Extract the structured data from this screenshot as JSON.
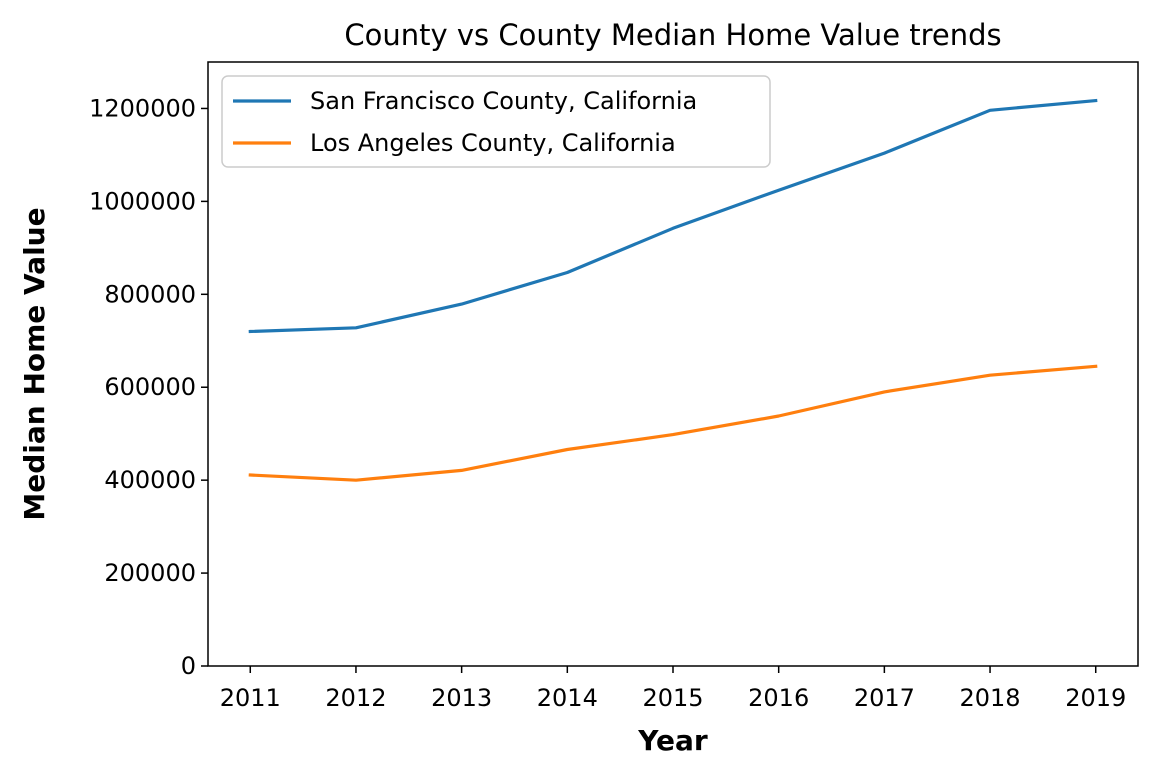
{
  "chart_data": {
    "type": "line",
    "title": "County vs County Median Home Value trends",
    "xlabel": "Year",
    "ylabel": "Median Home Value",
    "x": [
      2011,
      2012,
      2013,
      2014,
      2015,
      2016,
      2017,
      2018,
      2019
    ],
    "x_tick_labels": [
      "2011",
      "2012",
      "2013",
      "2014",
      "2015",
      "2016",
      "2017",
      "2018",
      "2019"
    ],
    "ylim": [
      0,
      1300000
    ],
    "y_ticks": [
      0,
      200000,
      400000,
      600000,
      800000,
      1000000,
      1200000
    ],
    "y_tick_labels": [
      "0",
      "200000",
      "400000",
      "600000",
      "800000",
      "1000000",
      "1200000"
    ],
    "grid": false,
    "legend_position": "top-left",
    "series": [
      {
        "name": "San Francisco County, California",
        "color": "#1f77b4",
        "values": [
          720000,
          728000,
          779000,
          847000,
          942000,
          1024000,
          1104000,
          1196000,
          1217000
        ]
      },
      {
        "name": "Los Angeles County, California",
        "color": "#ff7f0e",
        "values": [
          411000,
          400000,
          421000,
          466000,
          498000,
          538000,
          590000,
          626000,
          645000
        ]
      }
    ]
  }
}
